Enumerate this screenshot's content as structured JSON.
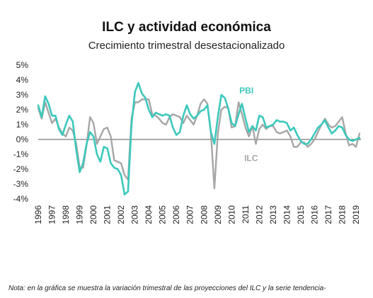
{
  "title": "ILC y actividad económica",
  "subtitle": "Crecimiento trimestral desestacionalizado",
  "note": "Nota: en la gráfica se muestra la variación trimestral de las proyecciones del ILC y la serie tendencia-",
  "colors": {
    "pbi": "#3cc8bc",
    "ilc": "#a6a6a6",
    "zero": "#555555",
    "label": "#222222"
  },
  "chart_data": {
    "type": "line",
    "title": "ILC y actividad económica",
    "subtitle": "Crecimiento trimestral desestacionalizado",
    "xlabel": "",
    "ylabel": "",
    "ylim": [
      -4,
      5
    ],
    "y_ticks": [
      "5%",
      "4%",
      "3%",
      "2%",
      "1%",
      "0%",
      "-1%",
      "-2%",
      "-3%",
      "-4%"
    ],
    "x_ticks": [
      "1996",
      "1997",
      "1998",
      "1999",
      "2000",
      "2001",
      "2002",
      "2003",
      "2004",
      "2005",
      "2006",
      "2007",
      "2008",
      "2009",
      "2010",
      "2011",
      "2012",
      "2013",
      "2014",
      "2015",
      "2016",
      "2017",
      "2018",
      "2019"
    ],
    "grid": false,
    "x_start_year": 1996.0,
    "x_step_years": 0.25,
    "series": [
      {
        "name": "PBI",
        "values": [
          2.3,
          1.5,
          2.9,
          2.4,
          1.6,
          1.6,
          0.7,
          0.3,
          1.0,
          1.6,
          1.2,
          -0.7,
          -2.2,
          -1.6,
          -0.3,
          0.5,
          0.2,
          -1.0,
          -1.5,
          -0.5,
          -0.6,
          -1.6,
          -1.9,
          -2.0,
          -2.4,
          -3.7,
          -3.5,
          1.0,
          3.2,
          3.8,
          3.1,
          2.8,
          2.0,
          1.5,
          1.8,
          1.7,
          1.6,
          1.7,
          1.6,
          0.8,
          0.3,
          0.5,
          1.6,
          2.3,
          1.7,
          1.4,
          1.6,
          1.9,
          2.0,
          2.3,
          0.5,
          -0.3,
          1.5,
          3.0,
          2.8,
          2.1,
          1.1,
          0.9,
          1.7,
          2.4,
          1.4,
          0.5,
          0.9,
          0.6,
          1.6,
          1.5,
          0.8,
          0.9,
          1.0,
          1.3,
          1.2,
          1.2,
          1.1,
          0.6,
          0.8,
          0.3,
          -0.1,
          -0.3,
          -0.3,
          0.0,
          0.4,
          0.8,
          1.0,
          1.3,
          0.8,
          0.4,
          0.6,
          0.9,
          0.8,
          0.3,
          0.0,
          -0.1,
          0.0,
          0.1
        ]
      },
      {
        "name": "ILC",
        "values": [
          2.1,
          1.4,
          2.5,
          1.8,
          1.1,
          1.4,
          0.8,
          0.4,
          0.2,
          0.8,
          0.6,
          -0.3,
          -1.9,
          -1.9,
          -0.4,
          1.5,
          1.1,
          -0.3,
          0.2,
          0.7,
          0.8,
          0.2,
          -1.4,
          -1.5,
          -1.6,
          -2.4,
          -2.7,
          1.4,
          2.5,
          2.5,
          2.7,
          2.7,
          2.7,
          1.7,
          1.6,
          1.4,
          1.1,
          1.0,
          1.5,
          1.7,
          1.6,
          1.5,
          1.1,
          1.6,
          1.3,
          1.0,
          1.6,
          2.4,
          2.7,
          2.4,
          0.4,
          -3.3,
          0.4,
          2.0,
          2.2,
          2.1,
          0.8,
          0.9,
          2.5,
          1.7,
          0.8,
          0.2,
          0.9,
          -0.3,
          0.7,
          1.0,
          0.7,
          0.9,
          0.9,
          0.5,
          0.4,
          0.5,
          0.6,
          0.2,
          -0.5,
          -0.5,
          -0.2,
          -0.2,
          -0.5,
          -0.3,
          0.0,
          0.5,
          1.0,
          1.4,
          1.0,
          0.8,
          0.9,
          1.2,
          1.5,
          0.4,
          -0.4,
          -0.3,
          -0.5,
          0.4
        ]
      }
    ],
    "annotations": [
      {
        "text": "PBI",
        "series": "PBI"
      },
      {
        "text": "ILC",
        "series": "ILC"
      }
    ]
  }
}
